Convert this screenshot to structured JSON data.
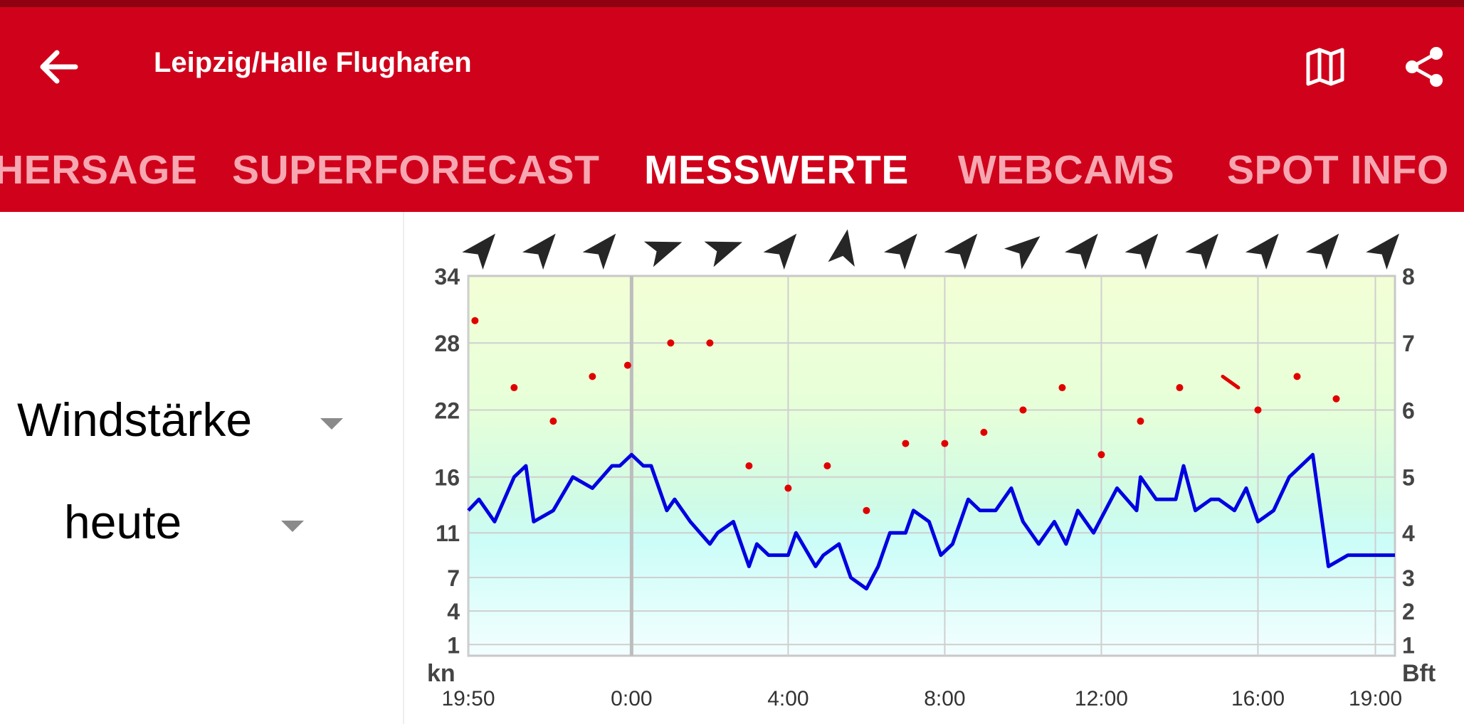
{
  "header": {
    "title": "Leipzig/Halle Flughafen",
    "back_icon": "arrow-left-icon",
    "map_icon": "map-icon",
    "share_icon": "share-icon"
  },
  "tabs": [
    {
      "label": "HERSAGE",
      "active": false
    },
    {
      "label": "SUPERFORECAST",
      "active": false
    },
    {
      "label": "MESSWERTE",
      "active": true
    },
    {
      "label": "WEBCAMS",
      "active": false
    },
    {
      "label": "SPOT INFO",
      "active": false
    }
  ],
  "controls": {
    "measure": "Windstärke",
    "period": "heute"
  },
  "colors": {
    "appbar": "#d0021b",
    "statusbar": "#8f0010",
    "tab_inactive": "#f6a7b1",
    "line": "#0000e0",
    "gust": "#e00000"
  },
  "chart_data": {
    "type": "line",
    "left_unit": "kn",
    "right_unit": "Bft",
    "left_ticks": [
      1,
      4,
      7,
      11,
      16,
      22,
      28,
      34
    ],
    "right_ticks": [
      1,
      2,
      3,
      4,
      5,
      6,
      7,
      8
    ],
    "ylim": [
      0,
      34
    ],
    "x_tick_labels": [
      "19:50",
      "0:00",
      "4:00",
      "8:00",
      "12:00",
      "16:00",
      "19:00"
    ],
    "x_tick_hours": [
      -4.17,
      0,
      4,
      8,
      12,
      16,
      19
    ],
    "xlim": [
      -4.17,
      19.5
    ],
    "grid": true,
    "series": [
      {
        "type": "line",
        "x": [
          -4.17,
          -3.9,
          -3.5,
          -3,
          -2.7,
          -2.5,
          -2,
          -1.5,
          -1,
          -0.5,
          -0.3,
          0,
          0.3,
          0.5,
          0.9,
          1.1,
          1.5,
          2,
          2.2,
          2.6,
          3,
          3.2,
          3.5,
          4,
          4.2,
          4.7,
          4.9,
          5.3,
          5.6,
          6,
          6.3,
          6.6,
          7,
          7.2,
          7.6,
          7.9,
          8.2,
          8.6,
          8.9,
          9.3,
          9.7,
          10,
          10.4,
          10.8,
          11.1,
          11.4,
          11.8,
          12.1,
          12.4,
          12.9,
          13,
          13.4,
          13.9,
          14.1,
          14.4,
          14.8,
          15,
          15.4,
          15.7,
          16,
          16.4,
          16.8,
          17.4,
          17.8,
          18.3,
          18.5,
          19.1,
          19.5
        ],
        "y": [
          13,
          14,
          12,
          16,
          17,
          12,
          13,
          16,
          15,
          17,
          17,
          18,
          17,
          17,
          13,
          14,
          12,
          10,
          11,
          12,
          8,
          10,
          9,
          9,
          11,
          8,
          9,
          10,
          7,
          6,
          8,
          11,
          11,
          13,
          12,
          9,
          10,
          14,
          13,
          13,
          15,
          12,
          10,
          12,
          10,
          13,
          11,
          13,
          15,
          13,
          16,
          14,
          14,
          17,
          13,
          14,
          14,
          13,
          15,
          12,
          13,
          16,
          18,
          8,
          9,
          9,
          9,
          9
        ]
      },
      {
        "type": "scatter",
        "x": [
          -4.0,
          -3,
          -2,
          -1,
          -0.1,
          1,
          2,
          3,
          4,
          5,
          6,
          7,
          8,
          9,
          10,
          11,
          12,
          13,
          14,
          16,
          17,
          18
        ],
        "y": [
          30,
          24,
          21,
          25,
          26,
          28,
          28,
          17,
          15,
          17,
          13,
          19,
          19,
          20,
          22,
          24,
          18,
          21,
          24,
          22,
          25,
          23
        ]
      }
    ],
    "gust_dash": {
      "x": [
        15.1,
        15.5
      ],
      "y": [
        25,
        24
      ]
    },
    "direction_degrees": [
      40,
      40,
      40,
      70,
      70,
      40,
      10,
      40,
      40,
      50,
      40,
      40,
      40,
      40,
      40,
      40
    ]
  }
}
